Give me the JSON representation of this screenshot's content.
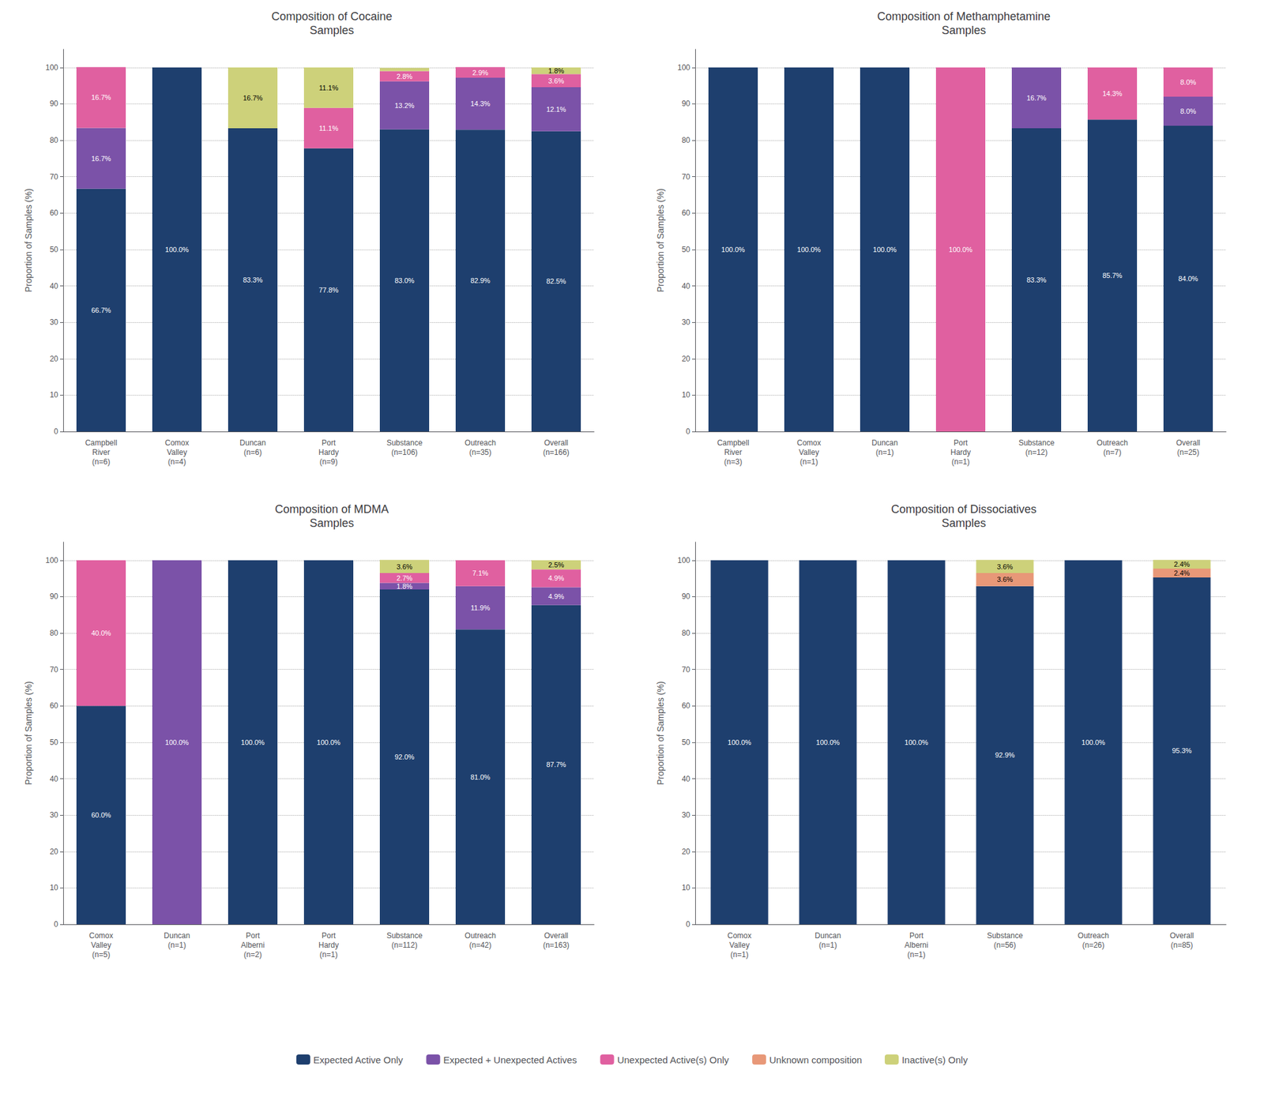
{
  "chart_data": [
    {
      "type": "bar",
      "stacked": true,
      "grid": true,
      "data_labels": true,
      "legend": "bottom",
      "title": "Composition of Cocaine\nSamples",
      "ylabel": "Proportion of Samples (%)",
      "categories": [
        "Campbell\nRiver\n(n=6)",
        "Comox\nValley\n(n=4)",
        "Duncan\n(n=6)",
        "Port\nHardy\n(n=9)",
        "Substance\n(n=106)",
        "Outreach\n(n=35)",
        "Overall\n(n=166)"
      ],
      "ylim": [
        0,
        105
      ],
      "yticks": [
        0,
        10,
        20,
        30,
        40,
        50,
        60,
        70,
        80,
        90,
        100
      ],
      "series": [
        {
          "name": "Expected Active Only",
          "color": "#1e3f6e",
          "values": [
            66.7,
            100.0,
            83.3,
            77.8,
            83.0,
            82.9,
            82.5
          ],
          "value_labels": [
            "66.7%",
            "100.0%",
            "83.3%",
            "77.8%",
            "83.0%",
            "82.9%",
            "82.5%"
          ]
        },
        {
          "name": "Expected + Unexpected Actives",
          "color": "#7b52a8",
          "values": [
            16.7,
            0.0,
            0.0,
            0.0,
            13.2,
            14.3,
            12.1
          ],
          "value_labels": [
            "16.7%",
            null,
            null,
            null,
            "13.2%",
            "14.3%",
            "12.1%"
          ]
        },
        {
          "name": "Unexpected Active(s) Only",
          "color": "#e060a0",
          "values": [
            16.7,
            0.0,
            0.0,
            11.1,
            2.8,
            2.9,
            3.6
          ],
          "value_labels": [
            "16.7%",
            null,
            null,
            "11.1%",
            "2.8%",
            "2.9%",
            "3.6%"
          ]
        },
        {
          "name": "Unknown composition",
          "color": "#e89878",
          "values": [
            0.0,
            0.0,
            0.0,
            0.0,
            0.0,
            0.0,
            0.0
          ],
          "value_labels": [
            null,
            null,
            null,
            null,
            null,
            null,
            null
          ]
        },
        {
          "name": "Inactive(s) Only",
          "color": "#cdd17a",
          "values": [
            0.0,
            0.0,
            16.7,
            11.1,
            0.9,
            0.0,
            1.8
          ],
          "value_labels": [
            null,
            null,
            "16.7%",
            "11.1%",
            null,
            null,
            "1.8%"
          ]
        }
      ]
    },
    {
      "type": "bar",
      "stacked": true,
      "grid": true,
      "data_labels": true,
      "legend": "bottom",
      "title": "Composition of Methamphetamine\nSamples",
      "ylabel": "Proportion of Samples (%)",
      "categories": [
        "Campbell\nRiver\n(n=3)",
        "Comox\nValley\n(n=1)",
        "Duncan\n(n=1)",
        "Port\nHardy\n(n=1)",
        "Substance\n(n=12)",
        "Outreach\n(n=7)",
        "Overall\n(n=25)"
      ],
      "ylim": [
        0,
        105
      ],
      "yticks": [
        0,
        10,
        20,
        30,
        40,
        50,
        60,
        70,
        80,
        90,
        100
      ],
      "series": [
        {
          "name": "Expected Active Only",
          "color": "#1e3f6e",
          "values": [
            100.0,
            100.0,
            100.0,
            0.0,
            83.3,
            85.7,
            84.0
          ],
          "value_labels": [
            "100.0%",
            "100.0%",
            "100.0%",
            null,
            "83.3%",
            "85.7%",
            "84.0%"
          ]
        },
        {
          "name": "Expected + Unexpected Actives",
          "color": "#7b52a8",
          "values": [
            0.0,
            0.0,
            0.0,
            0.0,
            16.7,
            0.0,
            8.0
          ],
          "value_labels": [
            null,
            null,
            null,
            null,
            "16.7%",
            null,
            "8.0%"
          ]
        },
        {
          "name": "Unexpected Active(s) Only",
          "color": "#e060a0",
          "values": [
            0.0,
            0.0,
            0.0,
            100.0,
            0.0,
            14.3,
            8.0
          ],
          "value_labels": [
            null,
            null,
            null,
            "100.0%",
            null,
            "14.3%",
            "8.0%"
          ]
        },
        {
          "name": "Unknown composition",
          "color": "#e89878",
          "values": [
            0.0,
            0.0,
            0.0,
            0.0,
            0.0,
            0.0,
            0.0
          ],
          "value_labels": [
            null,
            null,
            null,
            null,
            null,
            null,
            null
          ]
        },
        {
          "name": "Inactive(s) Only",
          "color": "#cdd17a",
          "values": [
            0.0,
            0.0,
            0.0,
            0.0,
            0.0,
            0.0,
            0.0
          ],
          "value_labels": [
            null,
            null,
            null,
            null,
            null,
            null,
            null
          ]
        }
      ]
    },
    {
      "type": "bar",
      "stacked": true,
      "grid": true,
      "data_labels": true,
      "legend": "bottom",
      "title": "Composition of MDMA\nSamples",
      "ylabel": "Proportion of Samples (%)",
      "categories": [
        "Comox\nValley\n(n=5)",
        "Duncan\n(n=1)",
        "Port\nAlberni\n(n=2)",
        "Port\nHardy\n(n=1)",
        "Substance\n(n=112)",
        "Outreach\n(n=42)",
        "Overall\n(n=163)"
      ],
      "ylim": [
        0,
        105
      ],
      "yticks": [
        0,
        10,
        20,
        30,
        40,
        50,
        60,
        70,
        80,
        90,
        100
      ],
      "series": [
        {
          "name": "Expected Active Only",
          "color": "#1e3f6e",
          "values": [
            60.0,
            0.0,
            100.0,
            100.0,
            92.0,
            81.0,
            87.7
          ],
          "value_labels": [
            "60.0%",
            null,
            "100.0%",
            "100.0%",
            "92.0%",
            "81.0%",
            "87.7%"
          ]
        },
        {
          "name": "Expected + Unexpected Actives",
          "color": "#7b52a8",
          "values": [
            0.0,
            100.0,
            0.0,
            0.0,
            1.8,
            11.9,
            4.9
          ],
          "value_labels": [
            null,
            "100.0%",
            null,
            null,
            "1.8%",
            "11.9%",
            "4.9%"
          ]
        },
        {
          "name": "Unexpected Active(s) Only",
          "color": "#e060a0",
          "values": [
            40.0,
            0.0,
            0.0,
            0.0,
            2.7,
            7.1,
            4.9
          ],
          "value_labels": [
            "40.0%",
            null,
            null,
            null,
            "2.7%",
            "7.1%",
            "4.9%"
          ]
        },
        {
          "name": "Unknown composition",
          "color": "#e89878",
          "values": [
            0.0,
            0.0,
            0.0,
            0.0,
            0.0,
            0.0,
            0.0
          ],
          "value_labels": [
            null,
            null,
            null,
            null,
            null,
            null,
            null
          ]
        },
        {
          "name": "Inactive(s) Only",
          "color": "#cdd17a",
          "values": [
            0.0,
            0.0,
            0.0,
            0.0,
            3.6,
            0.0,
            2.5
          ],
          "value_labels": [
            null,
            null,
            null,
            null,
            "3.6%",
            null,
            "2.5%"
          ]
        }
      ]
    },
    {
      "type": "bar",
      "stacked": true,
      "grid": true,
      "data_labels": true,
      "legend": "bottom",
      "title": "Composition of Dissociatives\nSamples",
      "ylabel": "Proportion of Samples (%)",
      "categories": [
        "Comox\nValley\n(n=1)",
        "Duncan\n(n=1)",
        "Port\nAlberni\n(n=1)",
        "Substance\n(n=56)",
        "Outreach\n(n=26)",
        "Overall\n(n=85)"
      ],
      "ylim": [
        0,
        105
      ],
      "yticks": [
        0,
        10,
        20,
        30,
        40,
        50,
        60,
        70,
        80,
        90,
        100
      ],
      "series": [
        {
          "name": "Expected Active Only",
          "color": "#1e3f6e",
          "values": [
            100.0,
            100.0,
            100.0,
            92.9,
            100.0,
            95.3
          ],
          "value_labels": [
            "100.0%",
            "100.0%",
            "100.0%",
            "92.9%",
            "100.0%",
            "95.3%"
          ]
        },
        {
          "name": "Expected + Unexpected Actives",
          "color": "#7b52a8",
          "values": [
            0.0,
            0.0,
            0.0,
            0.0,
            0.0,
            0.0
          ],
          "value_labels": [
            null,
            null,
            null,
            null,
            null,
            null
          ]
        },
        {
          "name": "Unexpected Active(s) Only",
          "color": "#e060a0",
          "values": [
            0.0,
            0.0,
            0.0,
            0.0,
            0.0,
            0.0
          ],
          "value_labels": [
            null,
            null,
            null,
            null,
            null,
            null
          ]
        },
        {
          "name": "Unknown composition",
          "color": "#e89878",
          "values": [
            0.0,
            0.0,
            0.0,
            3.6,
            0.0,
            2.4
          ],
          "value_labels": [
            null,
            null,
            null,
            "3.6%",
            null,
            "2.4%"
          ]
        },
        {
          "name": "Inactive(s) Only",
          "color": "#cdd17a",
          "values": [
            0.0,
            0.0,
            0.0,
            3.6,
            0.0,
            2.4
          ],
          "value_labels": [
            null,
            null,
            null,
            "3.6%",
            null,
            "2.4%"
          ]
        }
      ]
    }
  ]
}
